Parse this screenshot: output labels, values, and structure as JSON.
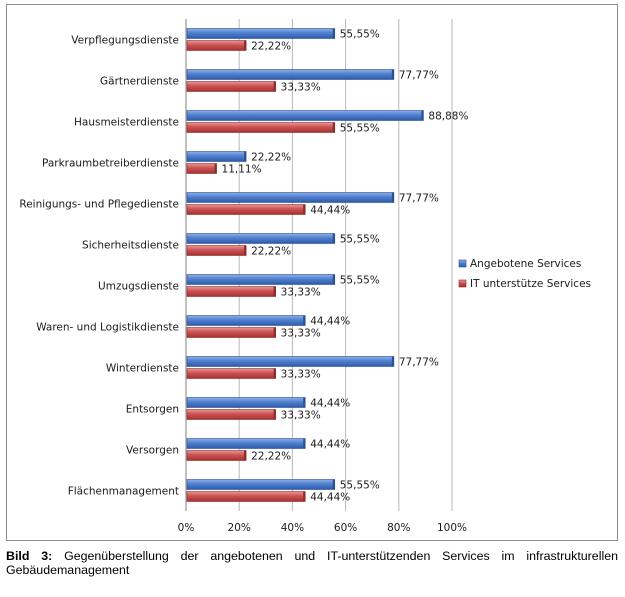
{
  "chart_data": {
    "type": "bar",
    "orientation": "horizontal",
    "categories": [
      "Verpflegungsdienste",
      "Gärtnerdienste",
      "Hausmeisterdienste",
      "Parkraumbetreiberdienste",
      "Reinigungs- und Pflegedienste",
      "Sicherheitsdienste",
      "Umzugsdienste",
      "Waren- und Logistikdienste",
      "Winterdienste",
      "Entsorgen",
      "Versorgen",
      "Flächenmanagement"
    ],
    "series": [
      {
        "name": "Angebotene Services",
        "color": "#4a7ac9",
        "values": [
          55.55,
          77.77,
          88.88,
          22.22,
          77.77,
          55.55,
          55.55,
          44.44,
          77.77,
          44.44,
          44.44,
          55.55
        ],
        "labels": [
          "55,55%",
          "77,77%",
          "88,88%",
          "22,22%",
          "77,77%",
          "55,55%",
          "55,55%",
          "44,44%",
          "77,77%",
          "44,44%",
          "44,44%",
          "55,55%"
        ]
      },
      {
        "name": "IT unterstütze Services",
        "color": "#c74a4a",
        "values": [
          22.22,
          33.33,
          55.55,
          11.11,
          44.44,
          22.22,
          33.33,
          33.33,
          33.33,
          33.33,
          22.22,
          44.44
        ],
        "labels": [
          "22,22%",
          "33,33%",
          "55,55%",
          "11,11%",
          "44,44%",
          "22,22%",
          "33,33%",
          "33,33%",
          "33,33%",
          "33,33%",
          "22,22%",
          "44,44%"
        ]
      }
    ],
    "xlim": [
      0,
      100
    ],
    "xticks": [
      "0%",
      "20%",
      "40%",
      "60%",
      "80%",
      "100%"
    ],
    "grid": true,
    "legend_position": "right",
    "title": "",
    "xlabel": "",
    "ylabel": ""
  },
  "caption": {
    "label": "Bild 3:",
    "text": "Gegenüberstellung der angebotenen und IT-unterstützenden Services im infrastrukturellen Gebäudemanagement"
  }
}
